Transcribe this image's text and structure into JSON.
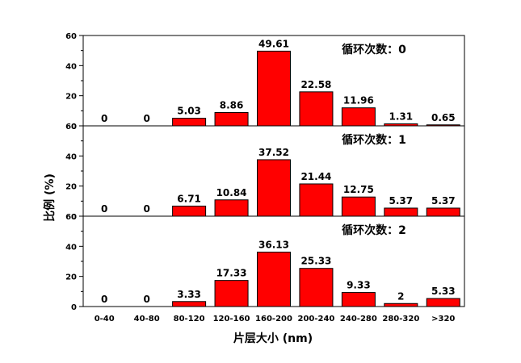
{
  "chart_data": {
    "type": "bar",
    "xlabel": "片层大小 (nm)",
    "ylabel": "比例 (%)",
    "categories": [
      "0-40",
      "40-80",
      "80-120",
      "120-160",
      "160-200",
      "200-240",
      "240-280",
      "280-320",
      ">320"
    ],
    "ylim": [
      0,
      60
    ],
    "yticks": [
      0,
      20,
      40,
      60
    ],
    "bar_color": "#ff0000",
    "panels": [
      {
        "title": "循环次数：0",
        "values": [
          0,
          0,
          5.03,
          8.86,
          49.61,
          22.58,
          11.96,
          1.31,
          0.65
        ],
        "labels": [
          "0",
          "0",
          "5.03",
          "8.86",
          "49.61",
          "22.58",
          "11.96",
          "1.31",
          "0.65"
        ]
      },
      {
        "title": "循环次数：1",
        "values": [
          0,
          0,
          6.71,
          10.84,
          37.52,
          21.44,
          12.75,
          5.37,
          5.37
        ],
        "labels": [
          "0",
          "0",
          "6.71",
          "10.84",
          "37.52",
          "21.44",
          "12.75",
          "5.37",
          "5.37"
        ]
      },
      {
        "title": "循环次数：2",
        "values": [
          0,
          0,
          3.33,
          17.33,
          36.13,
          25.33,
          9.33,
          2,
          5.33
        ],
        "labels": [
          "0",
          "0",
          "3.33",
          "17.33",
          "36.13",
          "25.33",
          "9.33",
          "2",
          "5.33"
        ]
      }
    ]
  }
}
